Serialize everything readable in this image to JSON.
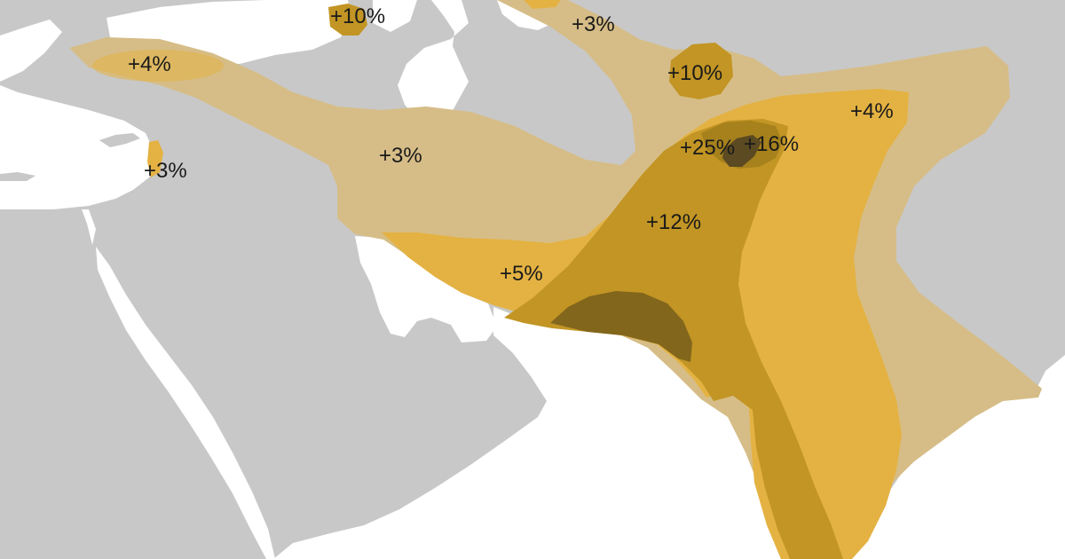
{
  "map": {
    "colors": {
      "sea": "#ffffff",
      "land": "#c8c8c8",
      "band_pale": "#d6bd87",
      "band_yellow": "#e4b242",
      "band_mid": "#c29524",
      "band_dark": "#a6811c",
      "band_darker": "#82661c",
      "band_darkest": "#5b4a22",
      "label_text": "#1a1a1a"
    },
    "labels": {
      "black_sea_north": "+10%",
      "caspian_east": "+3%",
      "central_asia": "+10%",
      "anatolia": "+4%",
      "levant": "+3%",
      "iran": "+3%",
      "tarim_east": "+4%",
      "pamir_peak": "+25%",
      "pamir_east": "+16%",
      "north_india": "+12%",
      "baluchistan": "+5%"
    }
  }
}
